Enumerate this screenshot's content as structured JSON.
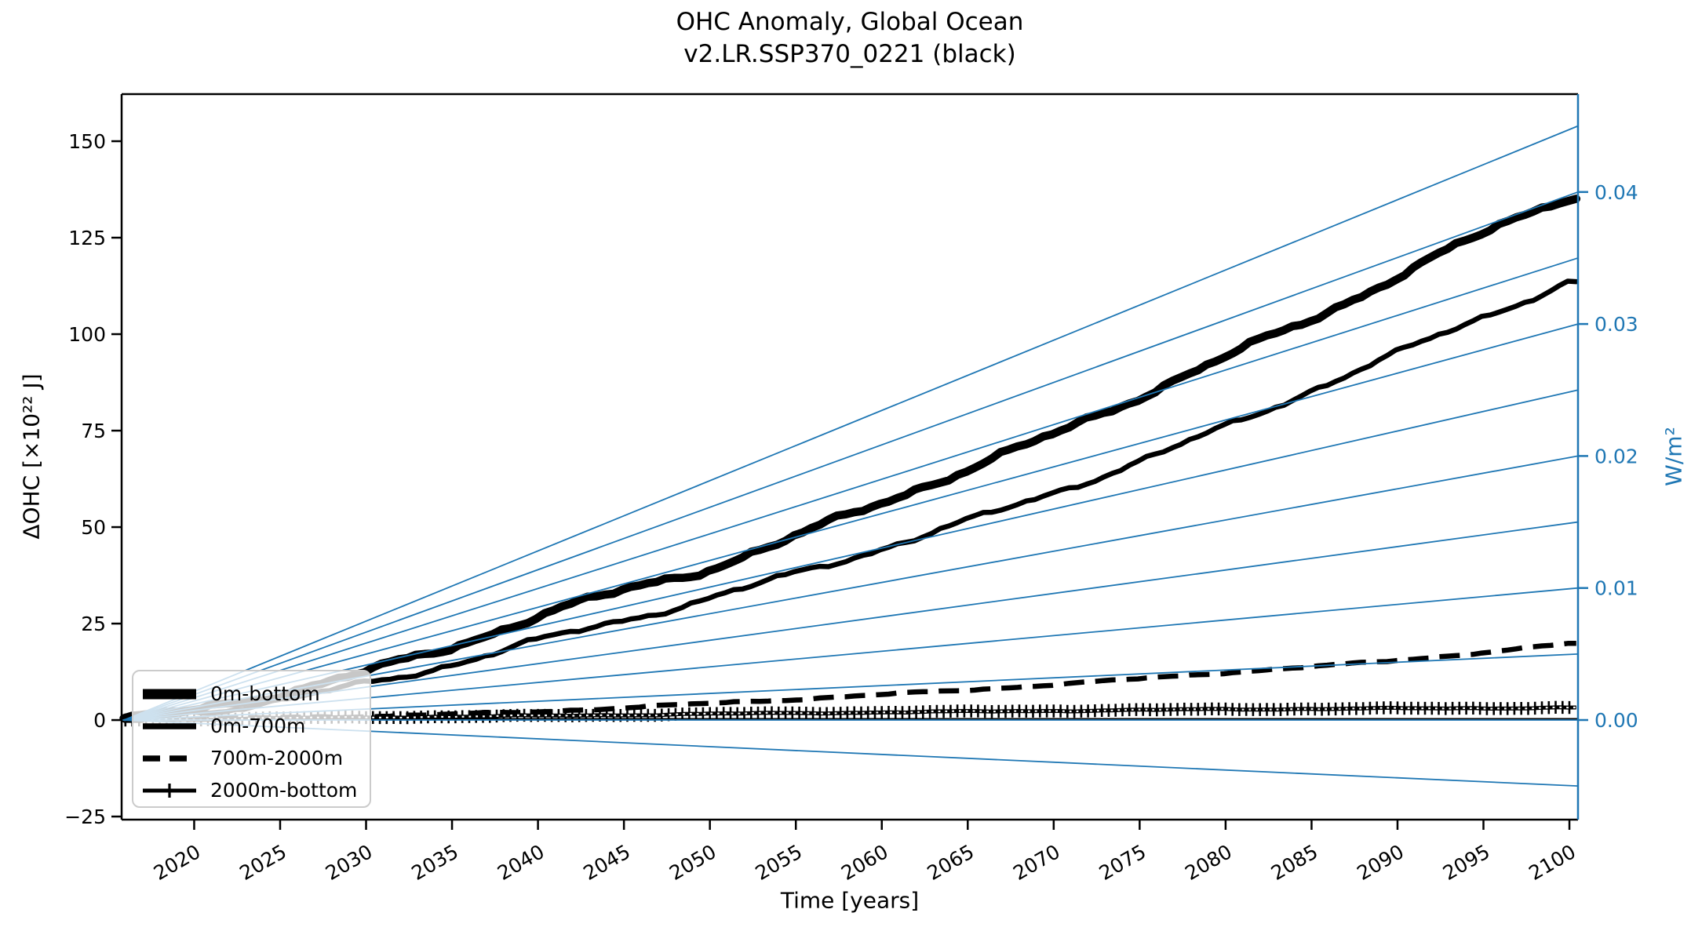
{
  "figure": {
    "title_line1": "OHC Anomaly, Global Ocean",
    "title_line2": "v2.LR.SSP370_0221 (black)",
    "background_color": "#ffffff",
    "accent_blue": "#1f77b4",
    "curve_color": "#000000"
  },
  "axes": {
    "x": {
      "label": "Time [years]",
      "tick_labels": [
        "2020",
        "2025",
        "2030",
        "2035",
        "2040",
        "2045",
        "2050",
        "2055",
        "2060",
        "2065",
        "2070",
        "2075",
        "2080",
        "2085",
        "2090",
        "2095",
        "2100"
      ],
      "tick_values": [
        2020,
        2025,
        2030,
        2035,
        2040,
        2045,
        2050,
        2055,
        2060,
        2065,
        2070,
        2075,
        2080,
        2085,
        2090,
        2095,
        2100
      ],
      "range": [
        2015.78,
        2100.5
      ],
      "tick_rotation_deg": -30
    },
    "y_left": {
      "label": "ΔOHC [×10²² J]",
      "tick_labels": [
        "150",
        "125",
        "100",
        "75",
        "50",
        "25",
        "0",
        "−25"
      ],
      "tick_values": [
        150,
        125,
        100,
        75,
        50,
        25,
        0,
        -25
      ],
      "range": [
        -25.8,
        162.2
      ],
      "color": "#000000"
    },
    "y_right": {
      "label": "W/m²",
      "tick_labels": [
        "0.04",
        "0.03",
        "0.02",
        "0.01",
        "0.00"
      ],
      "tick_values": [
        0.04,
        0.03,
        0.02,
        0.01,
        0.0
      ],
      "range": [
        -0.007546,
        0.047415
      ],
      "color": "#1f77b4"
    }
  },
  "legend": {
    "entries": [
      {
        "label": "0m-bottom",
        "style": "very-thick-solid"
      },
      {
        "label": "0m-700m",
        "style": "thick-solid"
      },
      {
        "label": "700m-2000m",
        "style": "thick-dashed"
      },
      {
        "label": "2000m-bottom",
        "style": "solid-plus-marker"
      }
    ]
  },
  "chart_data": {
    "type": "line",
    "title": "OHC Anomaly, Global Ocean v2.LR.SSP370_0221 (black)",
    "xlabel": "Time [years]",
    "ylabel_left": "ΔOHC [×10²² J]",
    "ylabel_right": "W/m²",
    "xlim": [
      2015.78,
      2100.5
    ],
    "ylim_left": [
      -25.8,
      162.2
    ],
    "ylim_right": [
      -0.007546,
      0.047415
    ],
    "grid": false,
    "legend_position": "lower left",
    "x": [
      2016,
      2020,
      2025,
      2030,
      2035,
      2040,
      2045,
      2050,
      2055,
      2060,
      2065,
      2070,
      2075,
      2080,
      2085,
      2090,
      2095,
      2100
    ],
    "series": [
      {
        "name": "0m-bottom",
        "style": "very-thick-solid",
        "color": "#000000",
        "values": [
          0,
          2.5,
          7,
          12.5,
          19,
          27,
          33.5,
          39.5,
          47.5,
          56.5,
          65,
          74,
          84,
          94,
          104,
          115,
          126,
          136
        ]
      },
      {
        "name": "0m-700m",
        "style": "thick-solid",
        "color": "#000000",
        "values": [
          0,
          2,
          5,
          9.5,
          14.5,
          20.5,
          26,
          31.5,
          38,
          44.5,
          51.5,
          59,
          67,
          76,
          85.5,
          95,
          104.5,
          113.5
        ]
      },
      {
        "name": "700m-2000m",
        "style": "thick-dashed",
        "color": "#000000",
        "values": [
          0,
          0.3,
          0.6,
          1.0,
          1.5,
          2.2,
          3.2,
          4.3,
          5.4,
          6.6,
          7.8,
          9.2,
          10.7,
          12.3,
          13.8,
          15.5,
          17.5,
          19.8
        ]
      },
      {
        "name": "2000m-bottom",
        "style": "solid-plus-marker",
        "color": "#000000",
        "values": [
          0,
          0.2,
          0.5,
          0.7,
          0.9,
          1.1,
          1.3,
          1.6,
          1.8,
          2.0,
          2.2,
          2.4,
          2.6,
          2.8,
          2.9,
          3.0,
          3.1,
          3.2
        ]
      }
    ],
    "reference_lines": {
      "description": "straight heating-rate reference lines fanning from origin (start of record, ΔOHC = 0) to 2100; slope value in W/m² read on right axis at 2100",
      "color": "#1f77b4",
      "origin_year": 2015.78,
      "slopes_wm2": [
        -0.005,
        0.0,
        0.005,
        0.01,
        0.015,
        0.02,
        0.025,
        0.03,
        0.035,
        0.04,
        0.045
      ]
    },
    "zero_line": {
      "value": 0,
      "color": "#000000"
    }
  }
}
